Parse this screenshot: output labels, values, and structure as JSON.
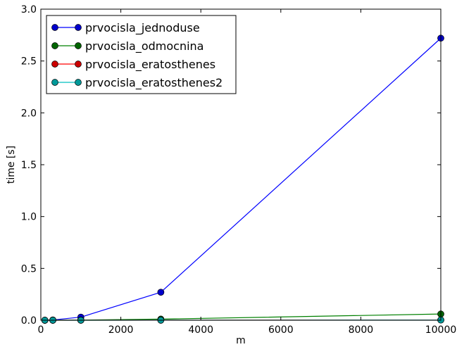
{
  "chart_data": {
    "type": "line",
    "title": "",
    "xlabel": "m",
    "ylabel": "time [s]",
    "xlim": [
      0,
      10000
    ],
    "ylim": [
      0,
      3.0
    ],
    "x_ticks": [
      "0",
      "2000",
      "4000",
      "6000",
      "8000",
      "10000"
    ],
    "y_ticks": [
      "0.0",
      "0.5",
      "1.0",
      "1.5",
      "2.0",
      "2.5",
      "3.0"
    ],
    "x_tick_values": [
      0,
      2000,
      4000,
      6000,
      8000,
      10000
    ],
    "y_tick_values": [
      0,
      0.5,
      1.0,
      1.5,
      2.0,
      2.5,
      3.0
    ],
    "grid": false,
    "legend_position": "top-left",
    "x": [
      100,
      300,
      1000,
      3000,
      10000
    ],
    "series": [
      {
        "name": "prvocisla_jednoduse",
        "color": "#0000ff",
        "marker_fill": "#0000cc",
        "values": [
          0.0005,
          0.003,
          0.03,
          0.27,
          2.72
        ]
      },
      {
        "name": "prvocisla_odmocnina",
        "color": "#008000",
        "marker_fill": "#006400",
        "values": [
          0.0001,
          0.0004,
          0.002,
          0.011,
          0.06
        ]
      },
      {
        "name": "prvocisla_eratosthenes",
        "color": "#ff0000",
        "marker_fill": "#cc0000",
        "values": [
          5e-05,
          0.0001,
          0.0003,
          0.0008,
          0.003
        ]
      },
      {
        "name": "prvocisla_eratosthenes2",
        "color": "#00bfbf",
        "marker_fill": "#009999",
        "values": [
          4e-05,
          0.0001,
          0.0002,
          0.0006,
          0.002
        ]
      }
    ]
  }
}
